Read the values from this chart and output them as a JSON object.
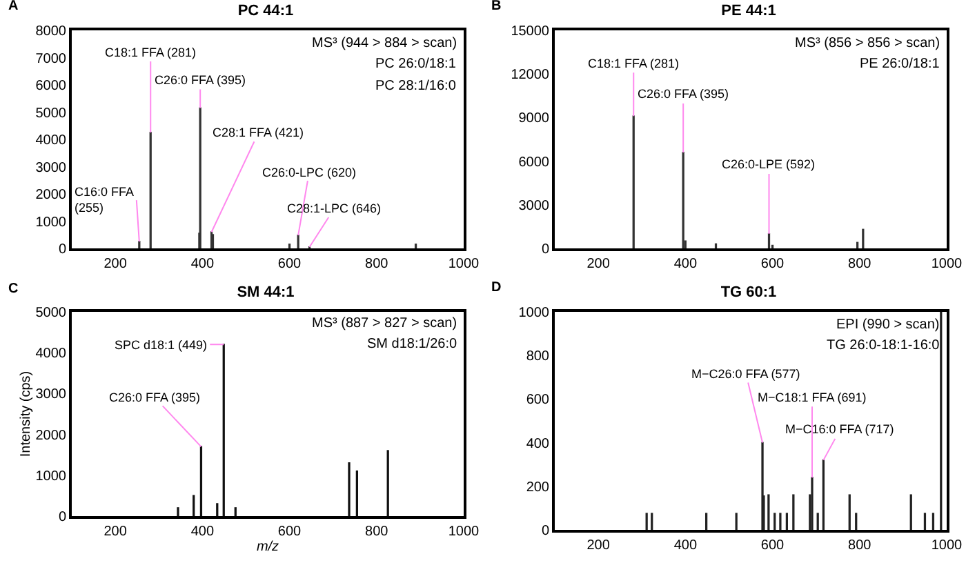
{
  "chart_data": [
    {
      "type": "bar",
      "title": "PC 44:1",
      "color": "#333333",
      "x": [
        255,
        281,
        393,
        395,
        421,
        424,
        600,
        620,
        646,
        890
      ],
      "values": [
        250,
        4250,
        550,
        5150,
        600,
        500,
        150,
        480,
        50,
        150
      ],
      "xlim": [
        100,
        1000
      ],
      "xticks": [
        200,
        400,
        600,
        800,
        1000
      ],
      "ylim": [
        0,
        8000
      ],
      "yticks": [
        0,
        1000,
        2000,
        3000,
        4000,
        5000,
        6000,
        7000,
        8000
      ],
      "annotations": [
        "A",
        "MS³ (944 > 884 > scan)",
        "PC 26:0/18:1",
        "PC 28:1/16:0",
        {
          "text": "C16:0 FFA (255)",
          "x": 255,
          "y": 250
        },
        {
          "text": "C18:1 FFA (281)",
          "x": 281,
          "y": 4250
        },
        {
          "text": "C26:0 FFA (395)",
          "x": 395,
          "y": 5150
        },
        {
          "text": "C28:1 FFA (421)",
          "x": 421,
          "y": 600
        },
        {
          "text": "C26:0-LPC (620)",
          "x": 620,
          "y": 480
        },
        {
          "text": "C28:1-LPC (646)",
          "x": 646,
          "y": 50
        }
      ]
    },
    {
      "type": "bar",
      "title": "PE 44:1",
      "color": "#333333",
      "x": [
        281,
        395,
        400,
        470,
        592,
        600,
        795,
        808
      ],
      "values": [
        9100,
        6600,
        500,
        300,
        1000,
        200,
        400,
        1300
      ],
      "xlim": [
        100,
        1000
      ],
      "xticks": [
        200,
        400,
        600,
        800,
        1000
      ],
      "ylim": [
        0,
        15000
      ],
      "yticks": [
        0,
        3000,
        6000,
        9000,
        12000,
        15000
      ],
      "annotations": [
        "B",
        "MS³ (856 > 856 > scan)",
        "PE 26:0/18:1",
        {
          "text": "C18:1 FFA (281)",
          "x": 281,
          "y": 9100
        },
        {
          "text": "C26:0 FFA (395)",
          "x": 395,
          "y": 6600
        },
        {
          "text": "C26:0-LPE (592)",
          "x": 592,
          "y": 1000
        }
      ]
    },
    {
      "type": "bar",
      "title": "SM 44:1",
      "color": "#111111",
      "x": [
        344,
        380,
        397,
        434,
        449,
        476,
        737,
        755,
        826
      ],
      "values": [
        200,
        500,
        1700,
        300,
        4200,
        200,
        1300,
        1100,
        1600
      ],
      "xlim": [
        100,
        1000
      ],
      "xticks": [
        200,
        400,
        600,
        800,
        1000
      ],
      "ylim": [
        0,
        5000
      ],
      "yticks": [
        0,
        1000,
        2000,
        3000,
        4000,
        5000
      ],
      "xlabel": "m/z",
      "ylabel": "Intensity (cps)",
      "annotations": [
        "C",
        "MS³ (887 > 827 > scan)",
        "SM d18:1/26:0",
        {
          "text": "SPC d18:1 (449)",
          "x": 449,
          "y": 4200
        },
        {
          "text": "C26:0 FFA (395)",
          "x": 397,
          "y": 1700
        }
      ]
    },
    {
      "type": "bar",
      "title": "TG 60:1",
      "color": "#222222",
      "x": [
        311,
        323,
        448,
        517,
        577,
        580,
        591,
        605,
        618,
        633,
        648,
        686,
        691,
        704,
        717,
        777,
        792,
        918,
        950,
        969,
        987
      ],
      "values": [
        75,
        75,
        75,
        75,
        400,
        155,
        160,
        75,
        75,
        75,
        160,
        160,
        240,
        75,
        320,
        160,
        75,
        160,
        75,
        75,
        1000
      ],
      "xlim": [
        100,
        1000
      ],
      "xticks": [
        200,
        400,
        600,
        800,
        1000
      ],
      "ylim": [
        0,
        1000
      ],
      "yticks": [
        0,
        200,
        400,
        600,
        800,
        1000
      ],
      "annotations": [
        "D",
        "EPI (990 > scan)",
        "TG 26:0-18:1-16:0",
        {
          "text": "M−C26:0 FFA (577)",
          "x": 577,
          "y": 400
        },
        {
          "text": "M−C18:1 FFA (691)",
          "x": 691,
          "y": 240
        },
        {
          "text": "M−C16:0 FFA (717)",
          "x": 717,
          "y": 320
        }
      ]
    }
  ]
}
